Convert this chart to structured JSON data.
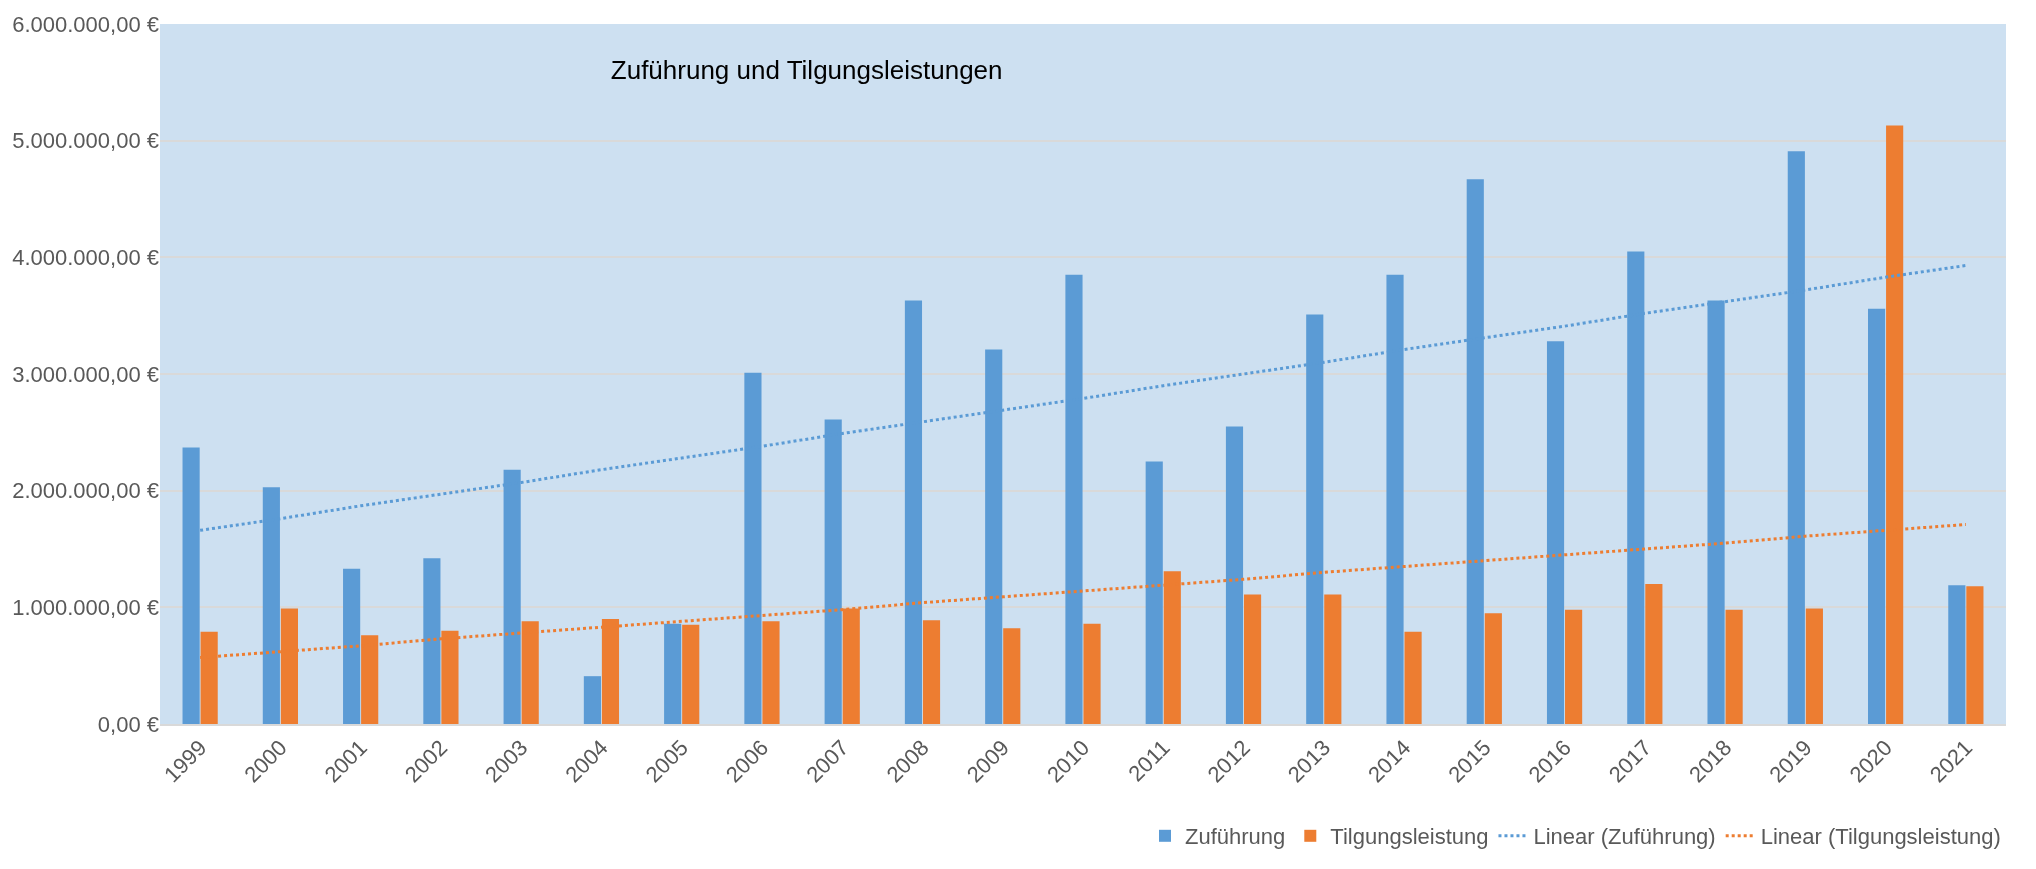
{
  "chart_data": {
    "type": "bar",
    "title": "Zuführung und Tilgungsleistungen",
    "categories": [
      "1999",
      "2000",
      "2001",
      "2002",
      "2003",
      "2004",
      "2005",
      "2006",
      "2007",
      "2008",
      "2009",
      "2010",
      "2011",
      "2012",
      "2013",
      "2014",
      "2015",
      "2016",
      "2017",
      "2018",
      "2019",
      "2020",
      "2021"
    ],
    "series": [
      {
        "name": "Zuführung",
        "color": "#5b9bd5",
        "values": [
          2370000,
          2030000,
          1330000,
          1420000,
          2180000,
          410000,
          860000,
          3010000,
          2610000,
          3630000,
          3210000,
          3850000,
          2250000,
          2550000,
          3510000,
          3850000,
          4670000,
          3280000,
          4050000,
          3630000,
          4910000,
          3560000,
          1190000
        ]
      },
      {
        "name": "Tilgungsleistung",
        "color": "#ed7d31",
        "values": [
          790000,
          990000,
          760000,
          800000,
          880000,
          900000,
          850000,
          880000,
          990000,
          890000,
          820000,
          860000,
          1310000,
          1110000,
          1110000,
          790000,
          950000,
          980000,
          1200000,
          980000,
          990000,
          5130000,
          1180000
        ]
      },
      {
        "name": "Linear (Zuführung)",
        "type": "line",
        "line_style": "dotted",
        "color": "#5b9bd5",
        "values": [
          1660000,
          1760000,
          1870000,
          1970000,
          2070000,
          2180000,
          2280000,
          2380000,
          2490000,
          2590000,
          2690000,
          2790000,
          2900000,
          3000000,
          3100000,
          3210000,
          3310000,
          3410000,
          3520000,
          3620000,
          3720000,
          3830000,
          3930000
        ]
      },
      {
        "name": "Linear (Tilgungsleistung)",
        "type": "line",
        "line_style": "dotted",
        "color": "#ed7d31",
        "values": [
          570000,
          620000,
          670000,
          730000,
          780000,
          830000,
          880000,
          930000,
          980000,
          1040000,
          1090000,
          1140000,
          1190000,
          1240000,
          1300000,
          1350000,
          1400000,
          1450000,
          1500000,
          1550000,
          1610000,
          1660000,
          1710000
        ]
      }
    ],
    "ylim": [
      0,
      6000000
    ],
    "yticks": [
      {
        "value": 0,
        "label": "0,00 €"
      },
      {
        "value": 1000000,
        "label": "1.000.000,00 €"
      },
      {
        "value": 2000000,
        "label": "2.000.000,00 €"
      },
      {
        "value": 3000000,
        "label": "3.000.000,00 €"
      },
      {
        "value": 4000000,
        "label": "4.000.000,00 €"
      },
      {
        "value": 5000000,
        "label": "5.000.000,00 €"
      },
      {
        "value": 6000000,
        "label": "6.000.000,00 €"
      }
    ],
    "grid": "y",
    "legend": "bottom right",
    "marker": "none"
  }
}
